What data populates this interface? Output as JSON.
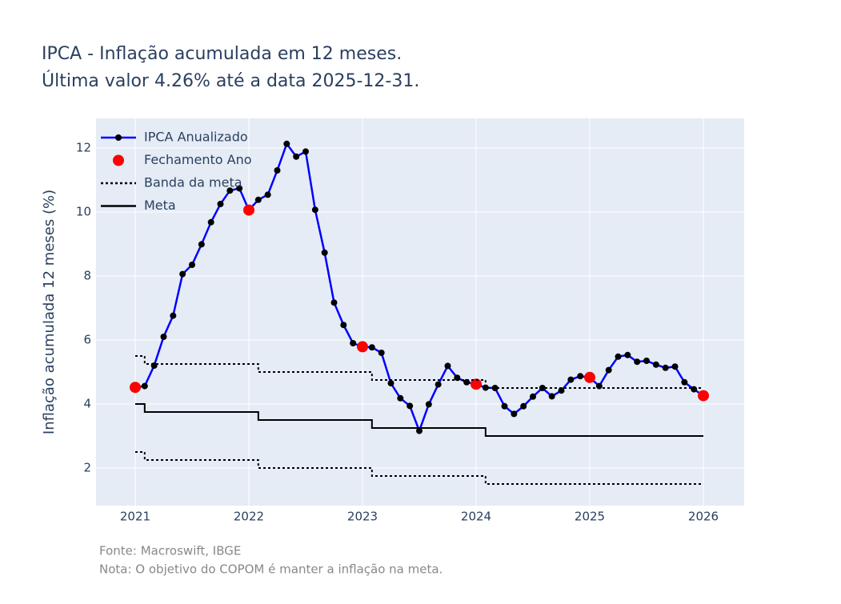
{
  "chart_data": {
    "type": "line",
    "title": [
      "IPCA - Inflação acumulada em 12 meses.",
      "Última valor 4.26% até a data 2025-12-31."
    ],
    "y_label": "Inflação acumulada 12 meses (%)",
    "notes": [
      "Fonte: Macroswift, IBGE",
      "Nota: O objetivo do COPOM é manter a inflação na meta."
    ],
    "xlim": [
      2020.655,
      2026.359
    ],
    "xticks": [
      2021,
      2022,
      2023,
      2024,
      2025,
      2026
    ],
    "ylim": [
      0.825,
      12.925
    ],
    "yticks": [
      2,
      4,
      6,
      8,
      10,
      12
    ],
    "grid": true,
    "legend": "top-left",
    "series": [
      {
        "name": "IPCA Anualizado",
        "color": "#0000ff",
        "marker_color": "#000000",
        "mode": "lines+markers",
        "x": [
          "2020-12",
          "2021-01",
          "2021-02",
          "2021-03",
          "2021-04",
          "2021-05",
          "2021-06",
          "2021-07",
          "2021-08",
          "2021-09",
          "2021-10",
          "2021-11",
          "2021-12",
          "2022-01",
          "2022-02",
          "2022-03",
          "2022-04",
          "2022-05",
          "2022-06",
          "2022-07",
          "2022-08",
          "2022-09",
          "2022-10",
          "2022-11",
          "2022-12",
          "2023-01",
          "2023-02",
          "2023-03",
          "2023-04",
          "2023-05",
          "2023-06",
          "2023-07",
          "2023-08",
          "2023-09",
          "2023-10",
          "2023-11",
          "2023-12",
          "2024-01",
          "2024-02",
          "2024-03",
          "2024-04",
          "2024-05",
          "2024-06",
          "2024-07",
          "2024-08",
          "2024-09",
          "2024-10",
          "2024-11",
          "2024-12",
          "2025-01",
          "2025-02",
          "2025-03",
          "2025-04",
          "2025-05",
          "2025-06",
          "2025-07",
          "2025-08",
          "2025-09",
          "2025-10",
          "2025-11",
          "2025-12"
        ],
        "values": [
          4.52,
          4.56,
          5.2,
          6.1,
          6.76,
          8.06,
          8.35,
          8.99,
          9.68,
          10.25,
          10.67,
          10.74,
          10.06,
          10.38,
          10.54,
          11.3,
          12.13,
          11.73,
          11.89,
          10.07,
          8.73,
          7.17,
          6.47,
          5.9,
          5.79,
          5.77,
          5.6,
          4.65,
          4.18,
          3.94,
          3.16,
          3.99,
          4.61,
          5.19,
          4.82,
          4.68,
          4.62,
          4.51,
          4.5,
          3.93,
          3.69,
          3.93,
          4.23,
          4.5,
          4.24,
          4.42,
          4.76,
          4.87,
          4.83,
          4.56,
          5.06,
          5.48,
          5.53,
          5.32,
          5.35,
          5.23,
          5.13,
          5.17,
          4.68,
          4.46,
          4.26
        ]
      },
      {
        "name": "Fechamento Ano",
        "color": "#ff0000",
        "mode": "markers",
        "x": [
          "2020-12",
          "2021-12",
          "2022-12",
          "2023-12",
          "2024-12",
          "2025-12"
        ],
        "values": [
          4.52,
          10.06,
          5.79,
          4.62,
          4.83,
          4.26
        ]
      },
      {
        "name": "Banda da meta",
        "color": "#000000",
        "mode": "lines",
        "dash": "dot",
        "shape": "hv",
        "x": [
          "2020-12",
          "2021-01",
          "2022-01",
          "2023-01",
          "2024-01",
          "2025-12"
        ],
        "values": [
          5.5,
          5.25,
          5.0,
          4.75,
          4.5,
          4.5
        ],
        "lower": [
          2.5,
          2.25,
          2.0,
          1.75,
          1.5,
          1.5
        ]
      },
      {
        "name": "Meta",
        "color": "#000000",
        "mode": "lines",
        "dash": "solid",
        "shape": "hv",
        "x": [
          "2020-12",
          "2021-01",
          "2022-01",
          "2023-01",
          "2024-01",
          "2025-12"
        ],
        "values": [
          4.0,
          3.75,
          3.5,
          3.25,
          3.0,
          3.0
        ]
      }
    ]
  }
}
